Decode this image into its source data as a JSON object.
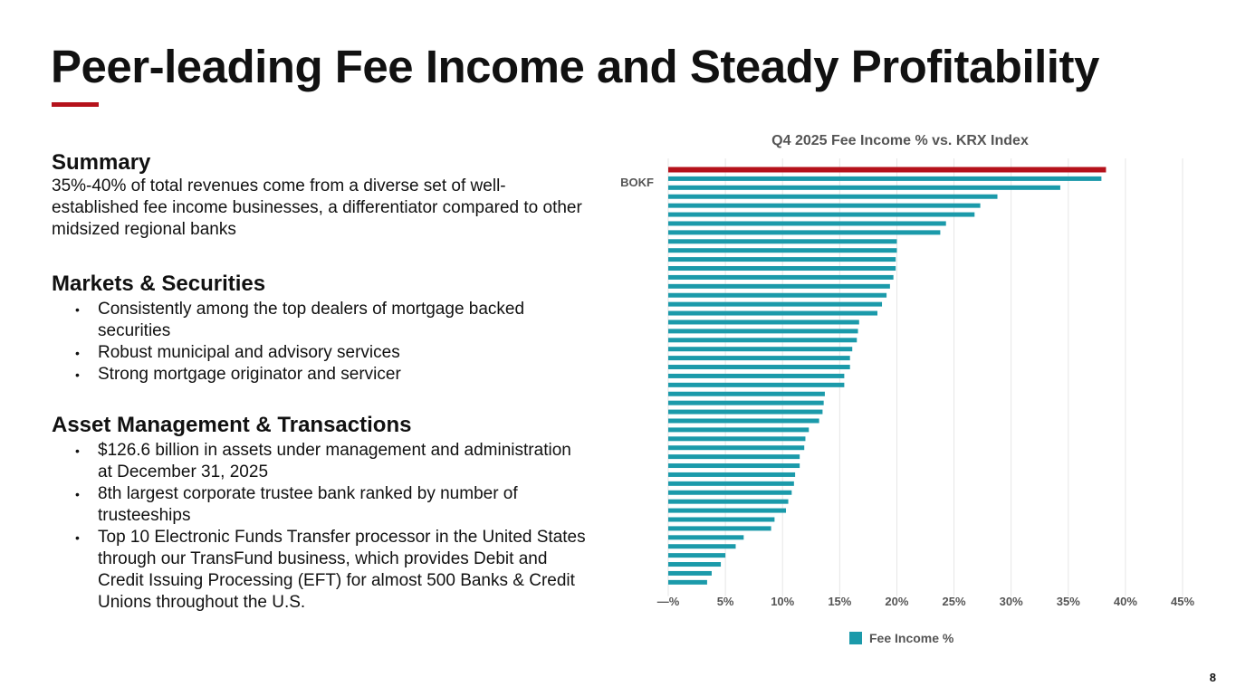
{
  "slide": {
    "title": "Peer-leading Fee Income and Steady Profitability",
    "page_number": "8",
    "accent_color": "#b5121b"
  },
  "summary": {
    "heading": "Summary",
    "text": "35%-40% of total revenues come from a diverse set of well-established fee income businesses, a differentiator compared to other midsized regional banks"
  },
  "markets": {
    "heading": "Markets & Securities",
    "bullets": [
      "Consistently among the top dealers of mortgage backed securities",
      "Robust municipal and advisory services",
      "Strong mortgage originator and servicer"
    ]
  },
  "asset": {
    "heading": "Asset Management & Transactions",
    "bullets": [
      "$126.6 billion in assets under management and administration at December 31, 2025",
      "8th largest corporate trustee bank ranked by number of trusteeships",
      "Top 10 Electronic Funds Transfer processor in the United States through our TransFund business, which provides Debit and Credit Issuing Processing (EFT) for almost 500 Banks & Credit Unions throughout the U.S."
    ]
  },
  "chart_data": {
    "type": "bar",
    "orientation": "horizontal",
    "title": "Q4 2025 Fee Income % vs. KRX Index",
    "highlight_label": "BOKF",
    "highlight_color": "#b5121b",
    "series_color": "#1b9aaa",
    "legend": "Fee Income %",
    "legend_position": "bottom",
    "xlim": [
      0,
      45
    ],
    "xticks": [
      "—%",
      "5%",
      "10%",
      "15%",
      "20%",
      "25%",
      "30%",
      "35%",
      "40%",
      "45%"
    ],
    "grid": true,
    "values": [
      38.3,
      37.9,
      34.3,
      28.8,
      27.3,
      26.8,
      24.3,
      23.8,
      20.0,
      20.0,
      19.9,
      19.9,
      19.7,
      19.4,
      19.1,
      18.7,
      18.3,
      16.7,
      16.6,
      16.5,
      16.1,
      15.9,
      15.9,
      15.4,
      15.4,
      13.7,
      13.6,
      13.5,
      13.2,
      12.3,
      12.0,
      11.9,
      11.5,
      11.5,
      11.1,
      11.0,
      10.8,
      10.5,
      10.3,
      9.3,
      9.0,
      6.6,
      5.9,
      5.0,
      4.6,
      3.8,
      3.4
    ]
  }
}
